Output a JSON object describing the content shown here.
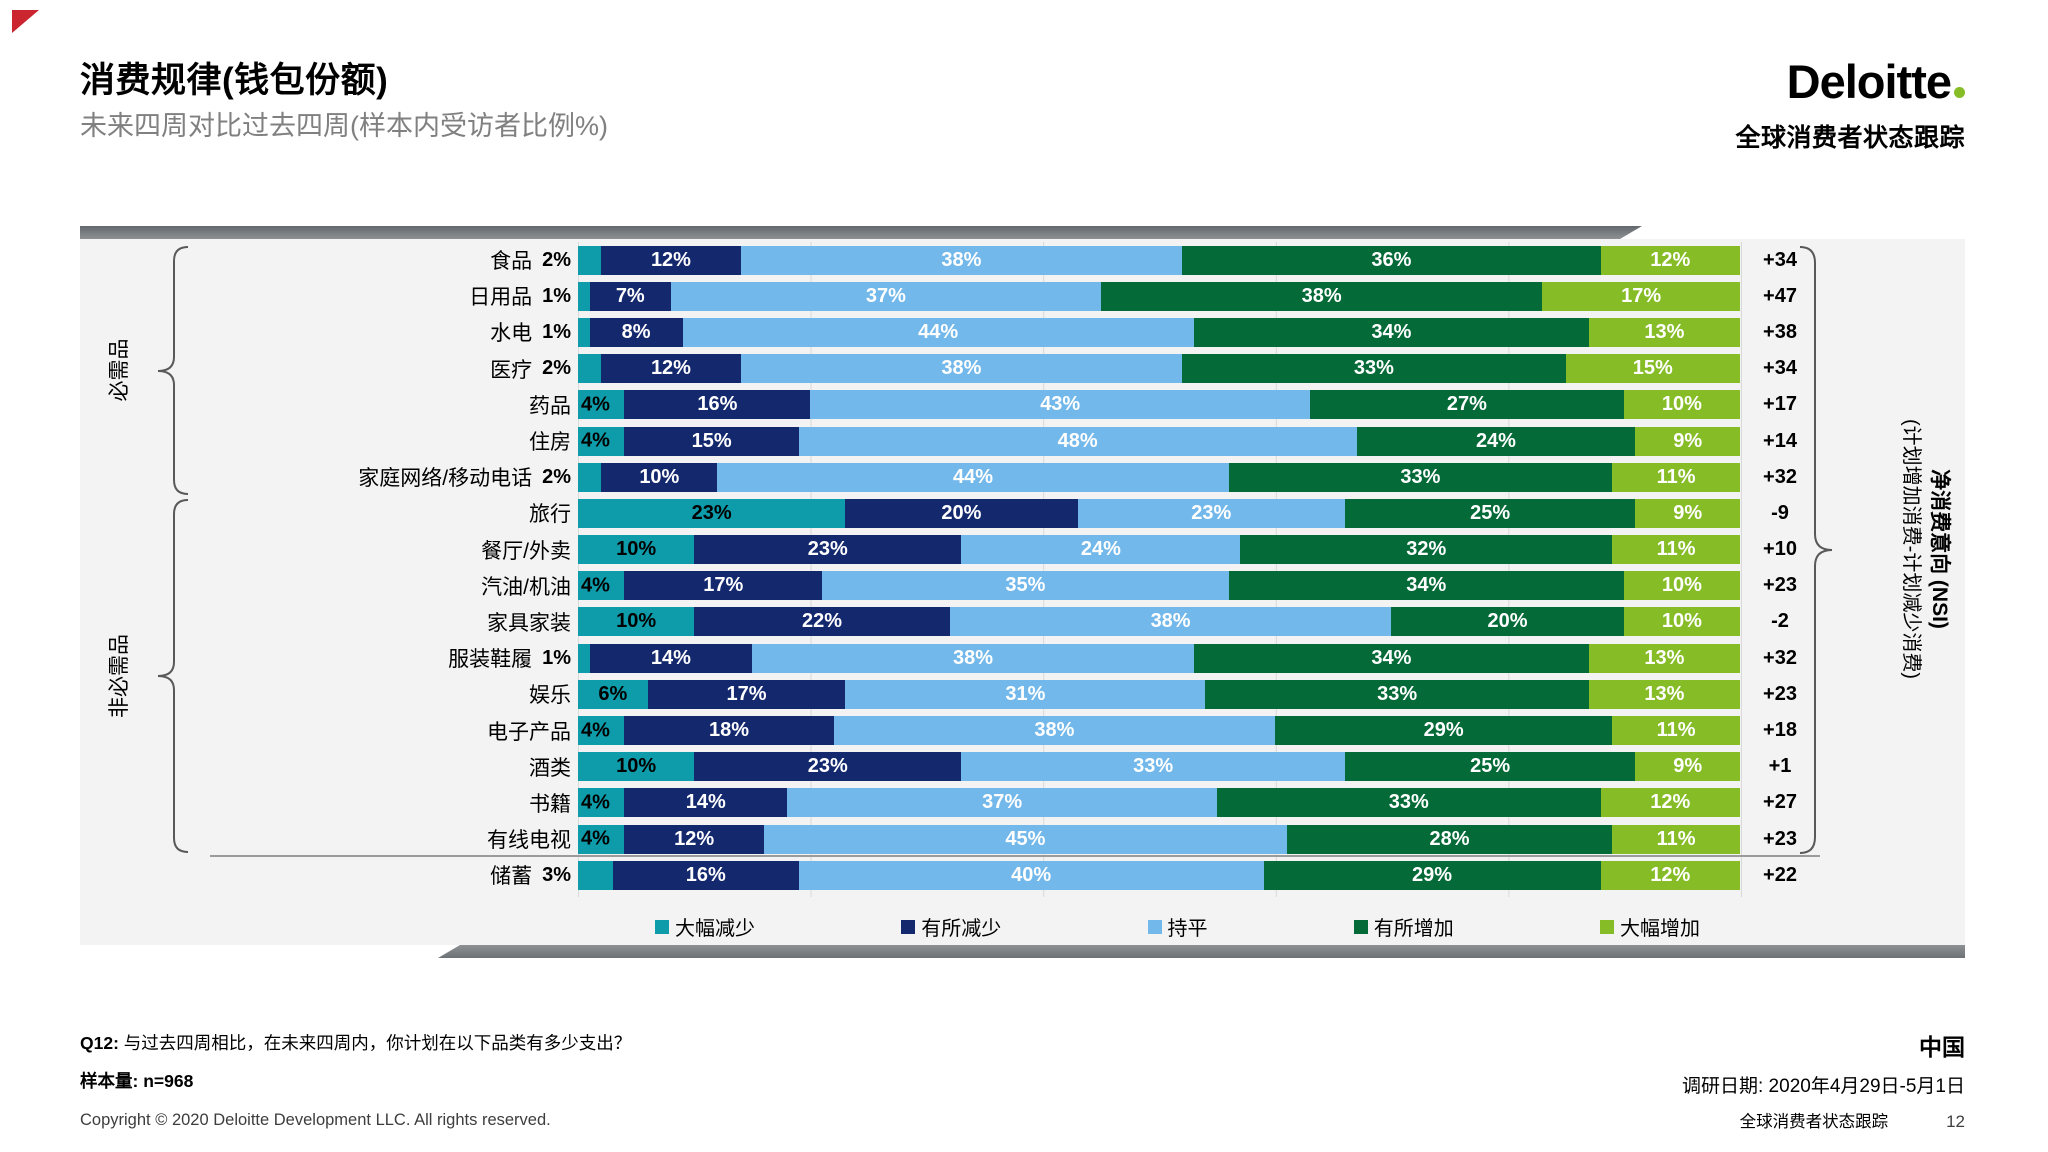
{
  "page": {
    "title": "消费规律(钱包份额)",
    "subtitle": "未来四周对比过去四周(样本内受访者比例%)",
    "logo": {
      "wordmark": "Deloitte",
      "tagline": "全球消费者状态跟踪"
    },
    "footer": {
      "question_prefix": "Q12:",
      "question_text": "与过去四周相比，在未来四周内，你计划在以下品类有多少支出？",
      "sample_label": "样本量:",
      "sample_value": "n=968",
      "copyright": "Copyright © 2020 Deloitte Development LLC. All rights reserved.",
      "country": "中国",
      "survey_date": "调研日期: 2020年4月29日-5月1日",
      "tracker": "全球消费者状态跟踪",
      "page_number": "12"
    }
  },
  "chart_data": {
    "type": "bar",
    "orientation": "horizontal",
    "stacked": true,
    "xlim": [
      0,
      100
    ],
    "gridlines_every_percent": 20,
    "legend_position": "bottom",
    "categories": [
      "食品",
      "日用品",
      "水电",
      "医疗",
      "药品",
      "住房",
      "家庭网络/移动电话",
      "旅行",
      "餐厅/外卖",
      "汽油/机油",
      "家具家装",
      "服装鞋履",
      "娱乐",
      "电子产品",
      "酒类",
      "书籍",
      "有线电视",
      "储蓄"
    ],
    "series": [
      {
        "name": "大幅减少",
        "color": "#0e9caa",
        "values": [
          2,
          1,
          1,
          2,
          4,
          4,
          2,
          23,
          10,
          4,
          10,
          1,
          6,
          4,
          10,
          4,
          4,
          3
        ]
      },
      {
        "name": "有所减少",
        "color": "#14286e",
        "values": [
          12,
          7,
          8,
          12,
          16,
          15,
          10,
          20,
          23,
          17,
          22,
          14,
          17,
          18,
          23,
          14,
          12,
          16
        ]
      },
      {
        "name": "持平",
        "color": "#73b8ea",
        "values": [
          38,
          37,
          44,
          38,
          43,
          48,
          44,
          23,
          24,
          35,
          38,
          38,
          31,
          38,
          33,
          37,
          45,
          40
        ]
      },
      {
        "name": "有所增加",
        "color": "#046a38",
        "values": [
          36,
          38,
          34,
          33,
          27,
          24,
          33,
          25,
          32,
          34,
          20,
          34,
          33,
          29,
          25,
          33,
          28,
          29
        ]
      },
      {
        "name": "大幅增加",
        "color": "#86bc25",
        "values": [
          12,
          17,
          13,
          15,
          10,
          9,
          11,
          9,
          11,
          10,
          10,
          13,
          13,
          11,
          9,
          12,
          11,
          12
        ]
      }
    ],
    "nsi_display": [
      "+34",
      "+47",
      "+38",
      "+34",
      "+17",
      "+14",
      "+32",
      "-9",
      "+10",
      "+23",
      "-2",
      "+32",
      "+23",
      "+18",
      "+1",
      "+27",
      "+23",
      "+22"
    ],
    "groups": [
      {
        "label": "必需品",
        "rows": "食品–家庭网络/移动电话"
      },
      {
        "label": "非必需品",
        "rows": "旅行–有线电视"
      }
    ],
    "right_axis_title": "净消费意向 (NSI)",
    "right_axis_subtitle": "(计划增加消费-计划减少消费)"
  }
}
